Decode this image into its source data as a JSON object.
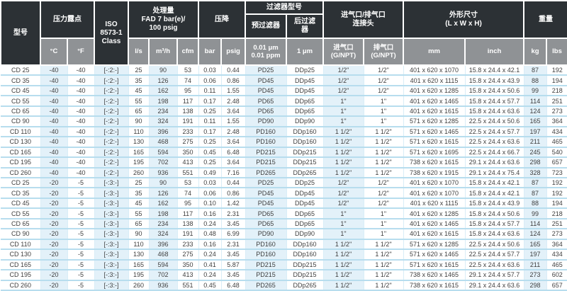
{
  "colors": {
    "header-dark": "#2c3135",
    "header-gray": "#8f9295",
    "row-line": "#b7ddee",
    "col-tint": "#e3f1f9",
    "body-text": "#3f3f3f"
  },
  "table": {
    "header": {
      "model": "型号",
      "dewpoint": {
        "title": "压力露点",
        "c": "°C",
        "f": "°F"
      },
      "iso": "ISO\n8573-1\nClass",
      "capacity": {
        "title": "处理量\nFAD 7 bar(e)/\n100 psig",
        "ls": "l/s",
        "m3h": "m³/h",
        "cfm": "cfm"
      },
      "pressure_drop": {
        "title": "压降",
        "bar": "bar",
        "psig": "psig"
      },
      "filter": {
        "title": "过滤器型号",
        "pre": "预过滤器",
        "post": "后过滤\n器",
        "pre_unit": "0.01 μm\n0.01 ppm",
        "post_unit": "1 μm"
      },
      "connection": {
        "title": "进气口/排气口\n连接头",
        "inlet": "进气口\n(G/NPT)",
        "outlet": "排气口\n(G/NPT)"
      },
      "dimensions": {
        "title": "外形尺寸\n(L x W x H)",
        "mm": "mm",
        "inch": "inch"
      },
      "weight": {
        "title": "重量",
        "kg": "kg",
        "lbs": "lbs"
      }
    },
    "rows": [
      [
        "CD 25",
        "-40",
        "-40",
        "[-:2:-]",
        "25",
        "90",
        "53",
        "0.03",
        "0.44",
        "PD25",
        "DDp25",
        "1/2\"",
        "1/2\"",
        "401 x 620 x 1070",
        "15.8 x 24.4 x 42.1",
        "87",
        "192"
      ],
      [
        "CD 35",
        "-40",
        "-40",
        "[-:2:-]",
        "35",
        "126",
        "74",
        "0.06",
        "0.86",
        "PD45",
        "DDp45",
        "1/2\"",
        "1/2\"",
        "401 x 620 x 1115",
        "15.8 x 24.4 x 43.9",
        "88",
        "194"
      ],
      [
        "CD 45",
        "-40",
        "-40",
        "[-:2:-]",
        "45",
        "162",
        "95",
        "0.11",
        "1.55",
        "PD45",
        "DDp45",
        "1/2\"",
        "1/2\"",
        "401 x 620 x 1285",
        "15.8 x 24.4 x 50.6",
        "99",
        "218"
      ],
      [
        "CD 55",
        "-40",
        "-40",
        "[-:2:-]",
        "55",
        "198",
        "117",
        "0.17",
        "2.48",
        "PD65",
        "DDp65",
        "1\"",
        "1\"",
        "401 x 620 x 1465",
        "15.8 x 24.4 x 57.7",
        "114",
        "251"
      ],
      [
        "CD 65",
        "-40",
        "-40",
        "[-:2:-]",
        "65",
        "234",
        "138",
        "0.25",
        "3.64",
        "PD65",
        "DDp65",
        "1\"",
        "1\"",
        "401 x 620 x 1615",
        "15.8 x 24.4 x 63.6",
        "124",
        "273"
      ],
      [
        "CD 90",
        "-40",
        "-40",
        "[-:2:-]",
        "90",
        "324",
        "191",
        "0.11",
        "1.55",
        "PD90",
        "DDp90",
        "1\"",
        "1\"",
        "571 x 620 x 1285",
        "22.5 x 24.4 x 50.6",
        "165",
        "364"
      ],
      [
        "CD 110",
        "-40",
        "-40",
        "[-:2:-]",
        "110",
        "396",
        "233",
        "0.17",
        "2.48",
        "PD160",
        "DDp160",
        "1 1/2\"",
        "1 1/2\"",
        "571 x 620 x 1465",
        "22.5 x 24.4 x 57.7",
        "197",
        "434"
      ],
      [
        "CD 130",
        "-40",
        "-40",
        "[-:2:-]",
        "130",
        "468",
        "275",
        "0.25",
        "3.64",
        "PD160",
        "DDp160",
        "1 1/2\"",
        "1 1/2\"",
        "571 x 620 x 1615",
        "22.5 x 24.4 x 63.6",
        "211",
        "465"
      ],
      [
        "CD 165",
        "-40",
        "-40",
        "[-:2:-]",
        "165",
        "594",
        "350",
        "0.45",
        "6.48",
        "PD215",
        "DDp215",
        "1 1/2\"",
        "1 1/2\"",
        "571 x 620 x 1695",
        "22.5 x 24.4 x 66.7",
        "245",
        "540"
      ],
      [
        "CD 195",
        "-40",
        "-40",
        "[-:2:-]",
        "195",
        "702",
        "413",
        "0.25",
        "3.64",
        "PD215",
        "DDp215",
        "1 1/2\"",
        "1 1/2\"",
        "738 x 620 x 1615",
        "29.1 x 24.4 x 63.6",
        "298",
        "657"
      ],
      [
        "CD 260",
        "-40",
        "-40",
        "[-:2:-]",
        "260",
        "936",
        "551",
        "0.49",
        "7.16",
        "PD265",
        "DDp265",
        "1 1/2\"",
        "1 1/2\"",
        "738 x 620 x 1915",
        "29.1 x 24.4 x 75.4",
        "328",
        "723"
      ],
      [
        "CD 25",
        "-20",
        "-5",
        "[-:3:-]",
        "25",
        "90",
        "53",
        "0.03",
        "0.44",
        "PD25",
        "DDp25",
        "1/2\"",
        "1/2\"",
        "401 x 620 x 1070",
        "15.8 x 24.4 x 42.1",
        "87",
        "192"
      ],
      [
        "CD 35",
        "-20",
        "-5",
        "[-:3:-]",
        "35",
        "126",
        "74",
        "0.06",
        "0.86",
        "PD45",
        "DDp45",
        "1/2\"",
        "1/2\"",
        "401 x 620 x 1070",
        "15.8 x 24.4 x 42.1",
        "87",
        "192"
      ],
      [
        "CD 45",
        "-20",
        "-5",
        "[-:3:-]",
        "45",
        "162",
        "95",
        "0.10",
        "1.42",
        "PD45",
        "DDp45",
        "1/2\"",
        "1/2\"",
        "401 x 620 x 1115",
        "15.8 x 24.4 x 43.9",
        "88",
        "194"
      ],
      [
        "CD 55",
        "-20",
        "-5",
        "[-:3:-]",
        "55",
        "198",
        "117",
        "0.16",
        "2.31",
        "PD65",
        "DDp65",
        "1\"",
        "1\"",
        "401 x 620 x 1285",
        "15.8 x 24.4 x 50.6",
        "99",
        "218"
      ],
      [
        "CD 65",
        "-20",
        "-5",
        "[-:3:-]",
        "65",
        "234",
        "138",
        "0.24",
        "3.45",
        "PD65",
        "DDp65",
        "1\"",
        "1\"",
        "401 x 620 x 1465",
        "15.8 x 24.4 x 57.7",
        "114",
        "251"
      ],
      [
        "CD 90",
        "-20",
        "-5",
        "[-:3:-]",
        "90",
        "324",
        "191",
        "0.48",
        "6.99",
        "PD90",
        "DDp90",
        "1\"",
        "1\"",
        "401 x 620 x 1615",
        "15.8 x 24.4 x 63.6",
        "124",
        "273"
      ],
      [
        "CD 110",
        "-20",
        "-5",
        "[-:3:-]",
        "110",
        "396",
        "233",
        "0.16",
        "2.31",
        "PD160",
        "DDp160",
        "1 1/2\"",
        "1 1/2\"",
        "571 x 620 x 1285",
        "22.5 x 24.4 x 50.6",
        "165",
        "364"
      ],
      [
        "CD 130",
        "-20",
        "-5",
        "[-:3:-]",
        "130",
        "468",
        "275",
        "0.24",
        "3.45",
        "PD160",
        "DDp160",
        "1 1/2\"",
        "1 1/2\"",
        "571 x 620 x 1465",
        "22.5 x 24.4 x 57.7",
        "197",
        "434"
      ],
      [
        "CD 165",
        "-20",
        "-5",
        "[-:3:-]",
        "165",
        "594",
        "350",
        "0.41",
        "5.87",
        "PD215",
        "DDp215",
        "1 1/2\"",
        "1 1/2\"",
        "571 x 620 x 1615",
        "22.5 x 24.4 x 63.6",
        "211",
        "465"
      ],
      [
        "CD 195",
        "-20",
        "-5",
        "[-:3:-]",
        "195",
        "702",
        "413",
        "0.24",
        "3.45",
        "PD215",
        "DDp215",
        "1 1/2\"",
        "1 1/2\"",
        "738 x 620 x 1465",
        "29.1 x 24.4 x 57.7",
        "273",
        "602"
      ],
      [
        "CD 260",
        "-20",
        "-5",
        "[-:3:-]",
        "260",
        "936",
        "551",
        "0.45",
        "6.48",
        "PD265",
        "DDp265",
        "1 1/2\"",
        "1 1/2\"",
        "738 x 620 x 1615",
        "29.1 x 24.4 x 63.6",
        "298",
        "657"
      ]
    ]
  }
}
